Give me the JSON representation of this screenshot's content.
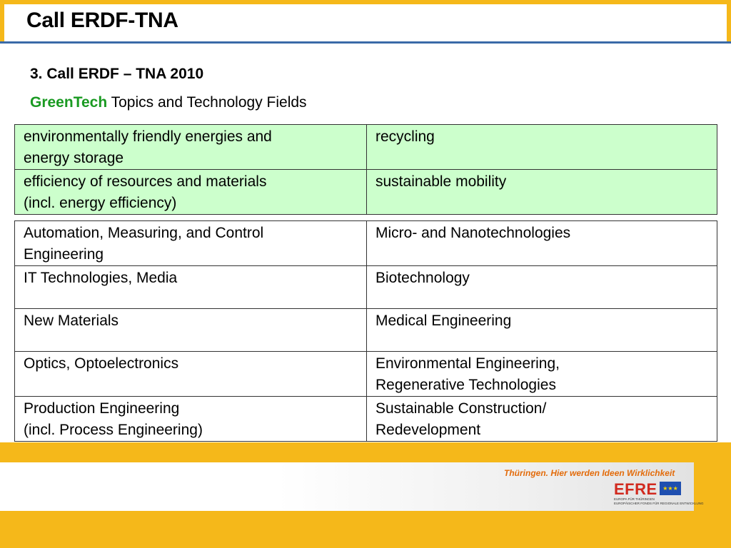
{
  "slide": {
    "title": "Call ERDF-TNA",
    "subtitle": "3. Call ERDF – TNA 2010",
    "topics_highlight": "GreenTech",
    "topics_rest": " Topics and Technology Fields"
  },
  "green_table": {
    "rows": [
      [
        "environmentally friendly energies and\nenergy storage",
        "recycling"
      ],
      [
        "efficiency of resources and materials\n(incl. energy efficiency)",
        "sustainable mobility"
      ]
    ]
  },
  "tech_table": {
    "rows": [
      [
        "Automation, Measuring, and Control\nEngineering",
        "Micro- and Nanotechnologies"
      ],
      [
        "IT Technologies, Media",
        "Biotechnology"
      ],
      [
        "New Materials",
        "Medical Engineering"
      ],
      [
        "Optics, Optoelectronics",
        "Environmental Engineering,\nRegenerative Technologies"
      ],
      [
        "Production Engineering\n(incl. Process Engineering)",
        "Sustainable Construction/\nRedevelopment"
      ]
    ]
  },
  "footer": {
    "slogan": "Thüringen. Hier werden Ideen Wirklichkeit",
    "logo_text": "EFRE",
    "logo_subtext": "EUROPA FÜR THÜRINGEN\nEUROPÄISCHER FONDS FÜR REGIONALE ENTWICKLUNG"
  },
  "colors": {
    "accent_yellow": "#f5b81a",
    "title_rule_blue": "#3a6aa8",
    "greentech_green": "#1a9a22",
    "green_cell": "#ccffcc",
    "efre_red": "#d12a1f",
    "eu_blue": "#1f4fb0"
  }
}
